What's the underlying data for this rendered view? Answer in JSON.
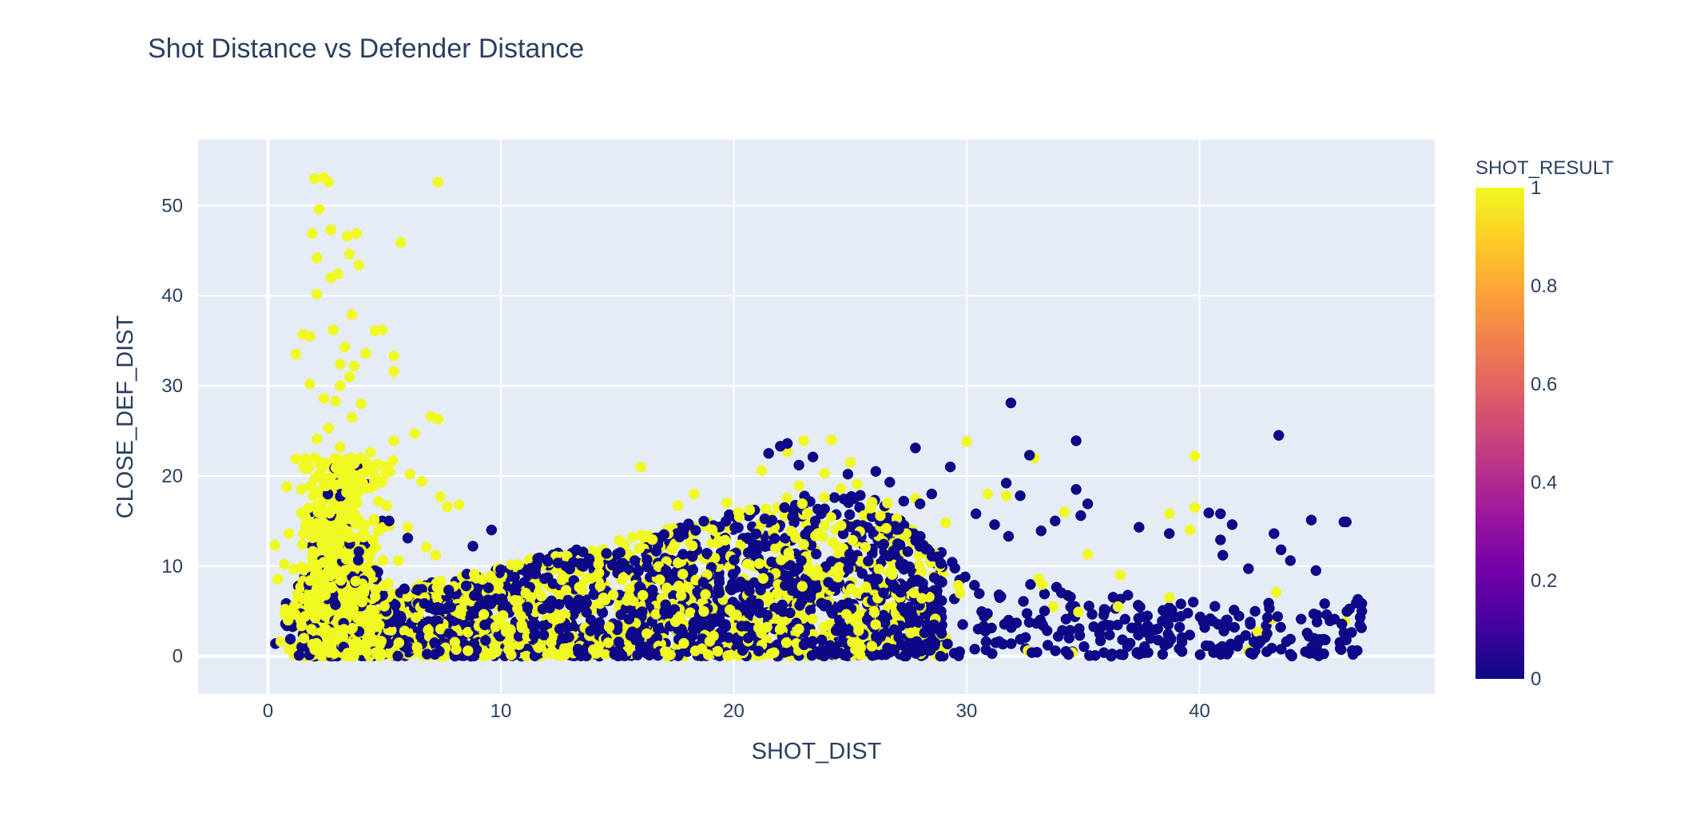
{
  "chart_data": {
    "type": "scatter",
    "title": "Shot Distance vs Defender Distance",
    "xlabel": "SHOT_DIST",
    "ylabel": "CLOSE_DEF_DIST",
    "xlim": [
      -3,
      50.1
    ],
    "ylim": [
      -4.2,
      57.3
    ],
    "x_ticks": [
      0,
      10,
      20,
      30,
      40
    ],
    "y_ticks": [
      0,
      10,
      20,
      30,
      40,
      50
    ],
    "grid": true,
    "colorbar": {
      "title": "SHOT_RESULT",
      "range": [
        0,
        1
      ],
      "ticks": [
        0,
        0.2,
        0.4,
        0.6,
        0.8,
        1
      ],
      "colorscale": [
        "#0d0887",
        "#46039f",
        "#7201a8",
        "#9c179e",
        "#bd3786",
        "#d8576b",
        "#ed7953",
        "#fb9f3a",
        "#fdca26",
        "#f0f921"
      ]
    },
    "marker_colors": {
      "made": "#f0f921",
      "missed": "#0d0887"
    },
    "series": [
      {
        "color_value": 1,
        "points": [
          [
            2.0,
            53.0
          ],
          [
            2.4,
            53.1
          ],
          [
            2.6,
            52.6
          ],
          [
            7.3,
            52.6
          ],
          [
            2.2,
            49.6
          ],
          [
            2.7,
            47.3
          ],
          [
            1.9,
            46.9
          ],
          [
            3.4,
            46.6
          ],
          [
            3.8,
            46.9
          ],
          [
            5.7,
            45.9
          ],
          [
            2.1,
            44.2
          ],
          [
            3.5,
            44.6
          ],
          [
            3.9,
            43.4
          ],
          [
            3.0,
            42.4
          ],
          [
            2.7,
            42.0
          ],
          [
            2.1,
            40.2
          ],
          [
            3.6,
            37.9
          ],
          [
            2.8,
            36.2
          ],
          [
            4.6,
            36.1
          ],
          [
            4.9,
            36.2
          ],
          [
            1.5,
            35.7
          ],
          [
            1.8,
            35.5
          ],
          [
            3.3,
            34.3
          ],
          [
            1.2,
            33.5
          ],
          [
            5.4,
            33.3
          ],
          [
            4.2,
            33.6
          ],
          [
            3.1,
            32.4
          ],
          [
            3.7,
            32.2
          ],
          [
            5.4,
            31.6
          ],
          [
            3.5,
            31.0
          ],
          [
            1.8,
            30.2
          ],
          [
            3.1,
            30.0
          ],
          [
            4.0,
            28.0
          ],
          [
            2.4,
            28.6
          ],
          [
            2.9,
            28.3
          ],
          [
            7.0,
            26.6
          ],
          [
            7.3,
            26.3
          ],
          [
            3.6,
            26.5
          ],
          [
            2.6,
            25.3
          ],
          [
            6.3,
            24.7
          ],
          [
            2.1,
            24.1
          ],
          [
            5.4,
            23.9
          ],
          [
            3.1,
            23.2
          ],
          [
            4.4,
            22.6
          ],
          [
            2.0,
            22.0
          ],
          [
            1.2,
            21.9
          ],
          [
            6.1,
            20.2
          ],
          [
            4.6,
            20.0
          ],
          [
            3.3,
            19.9
          ],
          [
            2.3,
            19.7
          ],
          [
            6.6,
            19.4
          ],
          [
            0.8,
            18.8
          ],
          [
            7.4,
            17.7
          ],
          [
            3.8,
            17.3
          ],
          [
            8.2,
            16.8
          ],
          [
            7.7,
            16.6
          ],
          [
            2.7,
            16.1
          ],
          [
            1.6,
            15.5
          ],
          [
            5.2,
            14.5
          ],
          [
            6.0,
            14.3
          ],
          [
            0.9,
            13.6
          ],
          [
            2.2,
            13.4
          ],
          [
            4.5,
            12.9
          ],
          [
            6.8,
            12.1
          ],
          [
            0.3,
            12.3
          ],
          [
            3.0,
            11.8
          ],
          [
            7.2,
            11.2
          ],
          [
            1.9,
            11.0
          ],
          [
            5.6,
            10.6
          ],
          [
            0.7,
            10.2
          ],
          [
            16.0,
            21.0
          ],
          [
            19.7,
            17.0
          ],
          [
            18.3,
            18.0
          ],
          [
            17.6,
            16.7
          ],
          [
            20.2,
            16.0
          ],
          [
            23.0,
            23.9
          ],
          [
            24.2,
            24.0
          ],
          [
            22.3,
            22.7
          ],
          [
            25.0,
            21.5
          ],
          [
            21.2,
            20.6
          ],
          [
            22.8,
            18.9
          ],
          [
            23.9,
            20.3
          ],
          [
            25.3,
            19.1
          ],
          [
            24.6,
            18.6
          ],
          [
            26.6,
            17.0
          ],
          [
            27.8,
            17.5
          ],
          [
            29.1,
            14.8
          ],
          [
            30.0,
            23.8
          ],
          [
            30.9,
            18.0
          ],
          [
            31.7,
            17.8
          ],
          [
            32.9,
            22.0
          ],
          [
            33.1,
            8.6
          ],
          [
            34.2,
            16.0
          ],
          [
            34.8,
            4.9
          ],
          [
            35.2,
            11.3
          ],
          [
            36.6,
            9.0
          ],
          [
            38.7,
            15.8
          ],
          [
            39.8,
            22.2
          ],
          [
            39.8,
            16.5
          ],
          [
            39.6,
            14.0
          ],
          [
            43.3,
            7.1
          ],
          [
            38.7,
            6.5
          ],
          [
            36.5,
            5.5
          ]
        ]
      },
      {
        "color_value": 0,
        "points": [
          [
            5.2,
            15.0
          ],
          [
            9.6,
            14.0
          ],
          [
            6.0,
            13.1
          ],
          [
            8.8,
            12.2
          ],
          [
            3.9,
            11.6
          ],
          [
            22.0,
            23.3
          ],
          [
            22.3,
            23.6
          ],
          [
            21.5,
            22.5
          ],
          [
            22.8,
            21.2
          ],
          [
            24.9,
            20.2
          ],
          [
            23.4,
            22.1
          ],
          [
            27.8,
            23.1
          ],
          [
            26.1,
            20.5
          ],
          [
            29.3,
            21.0
          ],
          [
            26.7,
            19.3
          ],
          [
            28.5,
            18.0
          ],
          [
            28.0,
            16.9
          ],
          [
            27.3,
            17.2
          ],
          [
            31.9,
            28.1
          ],
          [
            32.7,
            22.3
          ],
          [
            31.7,
            19.2
          ],
          [
            32.3,
            17.8
          ],
          [
            30.4,
            15.8
          ],
          [
            31.2,
            14.6
          ],
          [
            31.8,
            13.3
          ],
          [
            33.2,
            13.9
          ],
          [
            34.7,
            23.9
          ],
          [
            34.7,
            18.5
          ],
          [
            35.2,
            16.9
          ],
          [
            34.9,
            15.6
          ],
          [
            33.8,
            15.0
          ],
          [
            37.4,
            14.3
          ],
          [
            38.7,
            13.6
          ],
          [
            40.4,
            15.9
          ],
          [
            40.9,
            15.8
          ],
          [
            41.4,
            14.6
          ],
          [
            40.9,
            12.9
          ],
          [
            41.0,
            11.2
          ],
          [
            43.4,
            24.5
          ],
          [
            43.2,
            13.6
          ],
          [
            43.5,
            11.8
          ],
          [
            44.8,
            15.1
          ],
          [
            46.3,
            14.9
          ],
          [
            42.1,
            9.7
          ],
          [
            43.9,
            10.6
          ],
          [
            45.0,
            9.5
          ],
          [
            46.2,
            14.9
          ],
          [
            46.8,
            6.3
          ],
          [
            46.9,
            4.3
          ],
          [
            45.8,
            4.1
          ],
          [
            46.2,
            2.6
          ],
          [
            44.7,
            2.2
          ],
          [
            43.9,
            0.2
          ],
          [
            40.6,
            0.4
          ],
          [
            36.6,
            0.2
          ],
          [
            32.8,
            0.4
          ],
          [
            27.5,
            0.8
          ],
          [
            26.6,
            0.9
          ],
          [
            29.7,
            0.5
          ],
          [
            36.8,
            4.1
          ],
          [
            38.4,
            3.9
          ],
          [
            39.2,
            5.8
          ],
          [
            41.5,
            3.2
          ],
          [
            42.9,
            2.5
          ],
          [
            45.4,
            1.8
          ],
          [
            37.4,
            2.9
          ],
          [
            34.4,
            2.0
          ]
        ]
      }
    ]
  }
}
